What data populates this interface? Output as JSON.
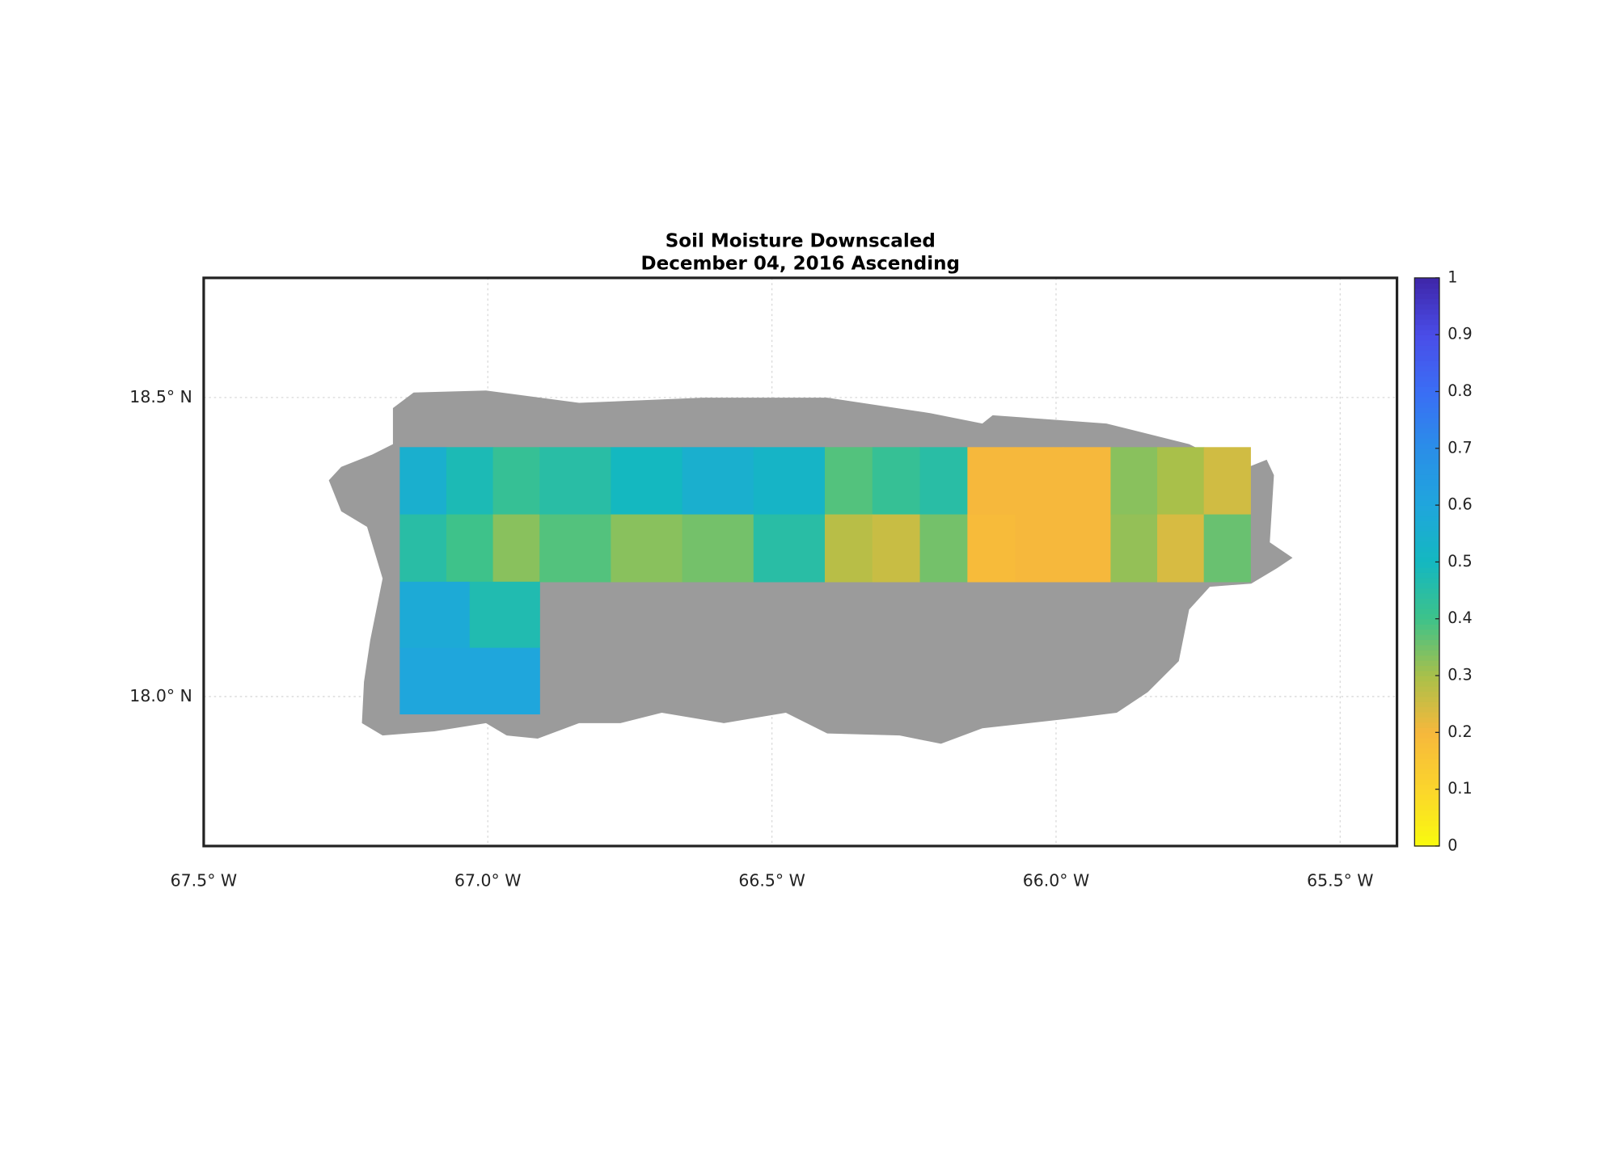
{
  "chart_data": {
    "type": "map",
    "title": "Soil Moisture Downscaled",
    "subtitle": "December 04, 2016 Ascending",
    "xlim": [
      -67.5,
      -65.4
    ],
    "ylim": [
      17.75,
      18.7
    ],
    "xticks": [
      {
        "value": -67.5,
        "label": "67.5° W"
      },
      {
        "value": -67.0,
        "label": "67.0° W"
      },
      {
        "value": -66.5,
        "label": "66.5° W"
      },
      {
        "value": -66.0,
        "label": "66.0° W"
      },
      {
        "value": -65.5,
        "label": "65.5° W"
      }
    ],
    "yticks": [
      {
        "value": 18.0,
        "label": "18.0° N"
      },
      {
        "value": 18.5,
        "label": "18.5° N"
      }
    ],
    "grid": true,
    "land_color": "#9b9b9b",
    "clim": [
      0,
      1
    ],
    "cticks": [
      0,
      0.1,
      0.2,
      0.3,
      0.4,
      0.5,
      0.6,
      0.7,
      0.8,
      0.9,
      1
    ],
    "colormap": [
      "#f9fb0e",
      "#fbd52c",
      "#f6b83c",
      "#a9c04a",
      "#3ec28a",
      "#14b8c0",
      "#1fa6dc",
      "#2a8ee8",
      "#3a6ef5",
      "#4a4de8",
      "#3e26a8"
    ],
    "tiles": [
      {
        "lon": [
          -67.155,
          -66.909
        ],
        "lat": [
          18.192,
          18.417
        ],
        "values": [
          [
            0.55,
            0.48,
            0.42
          ],
          [
            0.45,
            0.4,
            0.33
          ]
        ]
      },
      {
        "lon": [
          -66.909,
          -66.407
        ],
        "lat": [
          18.192,
          18.417
        ],
        "values": [
          [
            0.45,
            0.5,
            0.55,
            0.52
          ],
          [
            0.38,
            0.33,
            0.35,
            0.45
          ]
        ]
      },
      {
        "lon": [
          -66.407,
          -66.156
        ],
        "lat": [
          18.192,
          18.417
        ],
        "values": [
          [
            0.38,
            0.42,
            0.45
          ],
          [
            0.28,
            0.26,
            0.35
          ]
        ]
      },
      {
        "lon": [
          -66.156,
          -65.904
        ],
        "lat": [
          18.192,
          18.417
        ],
        "values": [
          [
            0.2,
            0.2,
            0.2
          ],
          [
            0.19,
            0.2,
            0.2
          ]
        ]
      },
      {
        "lon": [
          -65.904,
          -65.658
        ],
        "lat": [
          18.192,
          18.417
        ],
        "values": [
          [
            0.33,
            0.3,
            0.25
          ],
          [
            0.32,
            0.24,
            0.36
          ]
        ]
      },
      {
        "lon": [
          -67.155,
          -66.909
        ],
        "lat": [
          17.971,
          18.192
        ],
        "values": [
          [
            0.58,
            0.47
          ],
          [
            0.6,
            0.6
          ]
        ]
      }
    ]
  }
}
